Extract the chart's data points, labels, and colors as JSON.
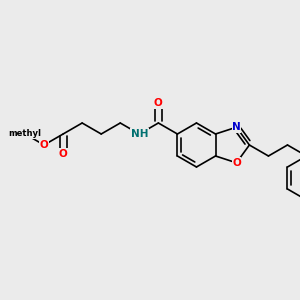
{
  "background_color": "#ebebeb",
  "bond_color": "#000000",
  "bond_width": 1.2,
  "atom_colors": {
    "O": "#ff0000",
    "N": "#0000cc",
    "NH": "#007070",
    "C": "#000000"
  },
  "font_size": 7.5,
  "fig_size": [
    3.0,
    3.0
  ],
  "dpi": 100,
  "xlim": [
    0,
    300
  ],
  "ylim": [
    0,
    300
  ]
}
